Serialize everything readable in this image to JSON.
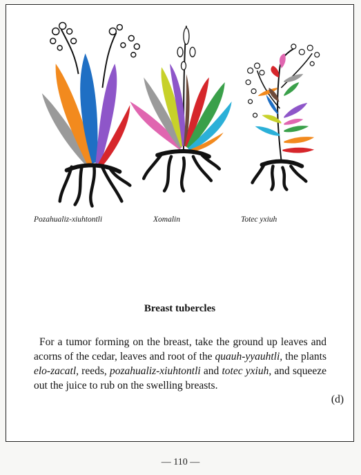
{
  "plants": [
    {
      "label": "Pozahualiz-xiuhtontli"
    },
    {
      "label": "Xomalin"
    },
    {
      "label": "Totec yxiuh"
    }
  ],
  "leaf_colors": [
    "#9a9a9a",
    "#f28a1e",
    "#1f6fc4",
    "#8e56c9",
    "#d6262b",
    "#e066b0",
    "#6d4a3a",
    "#c7d12a",
    "#2bb0d8",
    "#3aa04a"
  ],
  "section": {
    "title": "Breast tubercles"
  },
  "body": {
    "t1": "For a tumor forming on the breast, take the ground up leaves and acorns of the cedar, leaves and root of the ",
    "t2": "quauh-yyauhtli,",
    "t3": " the plants ",
    "t4": "elo-zacatl,",
    "t5": " reeds, ",
    "t6": "pozahualiz-xiuhtontli",
    "t7": " and ",
    "t8": "totec yxiuh,",
    "t9": " and squeeze out the juice to rub on the swelling breasts."
  },
  "footnote_marker": "(d)",
  "page_number": "— 110 —"
}
